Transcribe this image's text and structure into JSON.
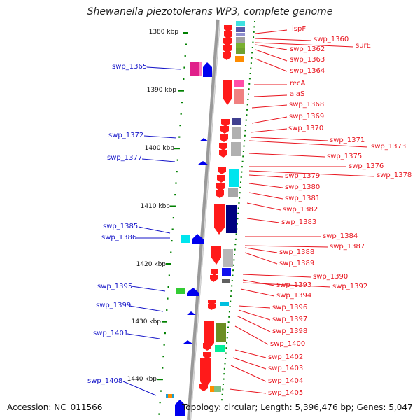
{
  "title": "Shewanella piezotolerans WP3, complete genome",
  "footer": {
    "accession": "Accession: NC_011566",
    "info": "Topology: circular; Length: 5,396,476 bp; Genes: 5,047"
  },
  "scale_labels": [
    "1380 kbp",
    "1390 kbp",
    "1400 kbp",
    "1410 kbp",
    "1420 kbp",
    "1430 kbp",
    "1440 kbp"
  ],
  "red_labels": [
    "ispF",
    "swp_1360",
    "surE",
    "swp_1362",
    "swp_1363",
    "swp_1364",
    "recA",
    "alaS",
    "swp_1368",
    "swp_1369",
    "swp_1370",
    "swp_1371",
    "swp_1373",
    "swp_1375",
    "swp_1376",
    "swp_1378",
    "swp_1379",
    "swp_1380",
    "swp_1381",
    "swp_1382",
    "swp_1383",
    "swp_1384",
    "swp_1387",
    "swp_1388",
    "swp_1389",
    "swp_1390",
    "swp_1393",
    "swp_1392",
    "swp_1394",
    "swp_1396",
    "swp_1397",
    "swp_1398",
    "swp_1400",
    "swp_1402",
    "swp_1403",
    "swp_1404",
    "swp_1405"
  ],
  "blue_labels": [
    "swp_1365",
    "swp_1372",
    "swp_1377",
    "swp_1385",
    "swp_1386",
    "swp_1395",
    "swp_1399",
    "swp_1401",
    "swp_1408"
  ],
  "colors": {
    "forward_strand": "#ff0000",
    "reverse_strand": "#0000ee",
    "label_red": "#e8141e",
    "label_blue": "#1515c8",
    "backbone": "#999999",
    "tick": "#008000"
  }
}
